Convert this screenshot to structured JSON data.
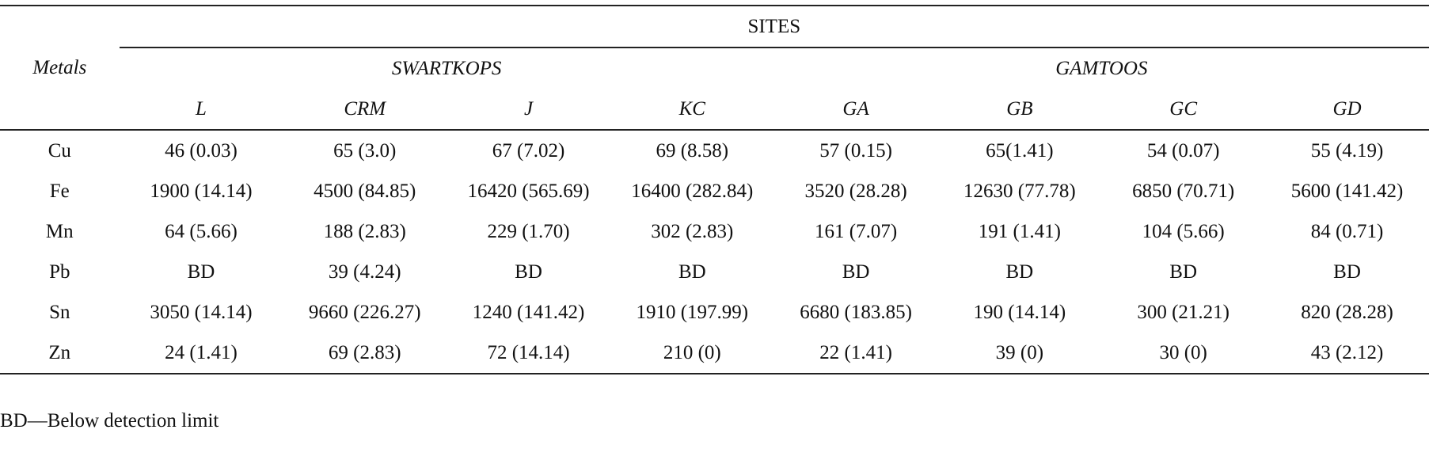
{
  "table": {
    "metals_header": "Metals",
    "sites_header": "SITES",
    "groups": [
      {
        "label": "SWARTKOPS"
      },
      {
        "label": "GAMTOOS"
      }
    ],
    "columns": [
      "L",
      "CRM",
      "J",
      "KC",
      "GA",
      "GB",
      "GC",
      "GD"
    ],
    "rows": [
      {
        "metal": "Cu",
        "values": [
          "46 (0.03)",
          "65 (3.0)",
          "67 (7.02)",
          "69 (8.58)",
          "57 (0.15)",
          "65(1.41)",
          "54 (0.07)",
          "55 (4.19)"
        ]
      },
      {
        "metal": "Fe",
        "values": [
          "1900 (14.14)",
          "4500 (84.85)",
          "16420 (565.69)",
          "16400 (282.84)",
          "3520 (28.28)",
          "12630 (77.78)",
          "6850 (70.71)",
          "5600 (141.42)"
        ]
      },
      {
        "metal": "Mn",
        "values": [
          "64 (5.66)",
          "188 (2.83)",
          "229 (1.70)",
          "302 (2.83)",
          "161 (7.07)",
          "191 (1.41)",
          "104 (5.66)",
          "84 (0.71)"
        ]
      },
      {
        "metal": "Pb",
        "values": [
          "BD",
          "39 (4.24)",
          "BD",
          "BD",
          "BD",
          "BD",
          "BD",
          "BD"
        ]
      },
      {
        "metal": "Sn",
        "values": [
          "3050 (14.14)",
          "9660 (226.27)",
          "1240 (141.42)",
          "1910 (197.99)",
          "6680 (183.85)",
          "190 (14.14)",
          "300 (21.21)",
          "820 (28.28)"
        ]
      },
      {
        "metal": "Zn",
        "values": [
          "24 (1.41)",
          "69 (2.83)",
          "72 (14.14)",
          "210 (0)",
          "22 (1.41)",
          "39 (0)",
          "30 (0)",
          "43 (2.12)"
        ]
      }
    ]
  },
  "footnote": "BD—Below detection limit"
}
